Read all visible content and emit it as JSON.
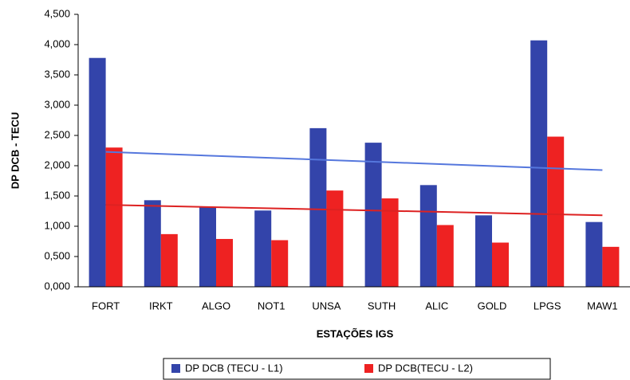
{
  "chart_data": {
    "type": "bar",
    "x_label": "ESTAÇÕES IGS",
    "y_label": "DP DCB - TECU",
    "categories": [
      "FORT",
      "IRKT",
      "ALGO",
      "NOT1",
      "UNSA",
      "SUTH",
      "ALIC",
      "GOLD",
      "LPGS",
      "MAW1"
    ],
    "series": [
      {
        "name": "DP DCB (TECU - L1)",
        "color": "#3344aa",
        "values": [
          3.78,
          1.43,
          1.31,
          1.26,
          2.62,
          2.38,
          1.68,
          1.18,
          4.07,
          1.07
        ]
      },
      {
        "name": "DP DCB(TECU - L2)",
        "color": "#ee2222",
        "values": [
          2.3,
          0.87,
          0.79,
          0.77,
          1.59,
          1.46,
          1.02,
          0.73,
          2.48,
          0.66
        ]
      }
    ],
    "trendline_colors": [
      "#5577dd",
      "#dd2222"
    ],
    "ylim": [
      0,
      4.5
    ],
    "yticks": [
      {
        "value": 0,
        "label": "0,000"
      },
      {
        "value": 0.5,
        "label": "0,500"
      },
      {
        "value": 1,
        "label": "1,000"
      },
      {
        "value": 1.5,
        "label": "1,500"
      },
      {
        "value": 2,
        "label": "2,000"
      },
      {
        "value": 2.5,
        "label": "2,500"
      },
      {
        "value": 3,
        "label": "3,000"
      },
      {
        "value": 3.5,
        "label": "3,500"
      },
      {
        "value": 4,
        "label": "4,000"
      },
      {
        "value": 4.5,
        "label": "4,500"
      }
    ],
    "grid": false,
    "legend": "bottom"
  }
}
